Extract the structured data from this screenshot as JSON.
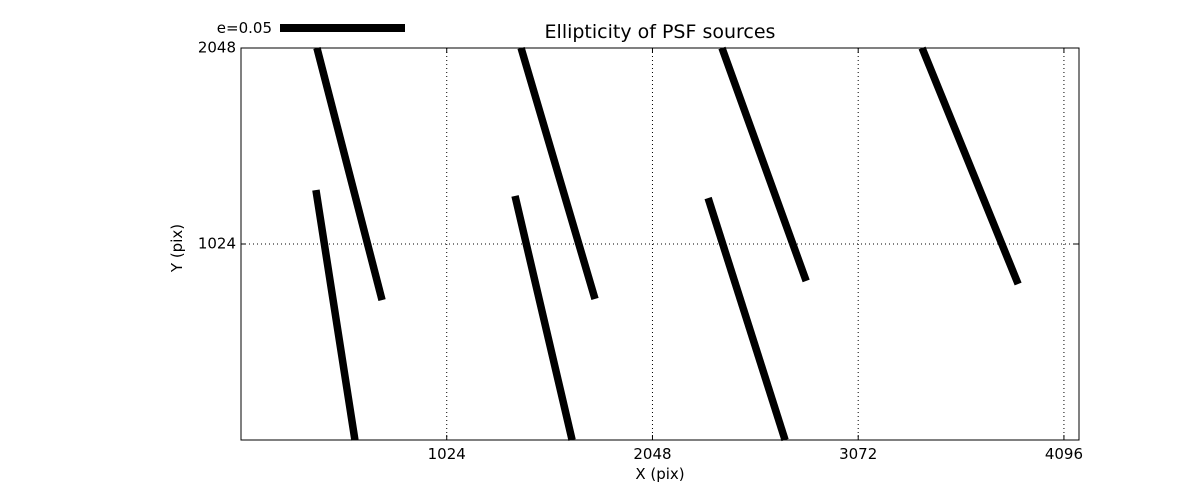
{
  "chart_data": {
    "type": "quiver",
    "title": "Ellipticity of PSF sources",
    "xlabel": "X (pix)",
    "ylabel": "Y (pix)",
    "xlim": [
      0,
      4171
    ],
    "ylim": [
      0,
      2048
    ],
    "xticks": [
      1024,
      2048,
      3072,
      4096
    ],
    "yticks": [
      1024,
      2048
    ],
    "grid": {
      "style": "dotted",
      "color": "#000000"
    },
    "legend": {
      "label": "e=0.05"
    },
    "stroke_color": "#000000",
    "background_color": "#ffffff",
    "segments": [
      {
        "x1": 378,
        "y1": 2048,
        "x2": 702,
        "y2": 731
      },
      {
        "x1": 373,
        "y1": 1306,
        "x2": 567,
        "y2": 0
      },
      {
        "x1": 1394,
        "y1": 2048,
        "x2": 1762,
        "y2": 737
      },
      {
        "x1": 1364,
        "y1": 1275,
        "x2": 1648,
        "y2": 0
      },
      {
        "x1": 2394,
        "y1": 2048,
        "x2": 2813,
        "y2": 831
      },
      {
        "x1": 2325,
        "y1": 1264,
        "x2": 2708,
        "y2": 0
      },
      {
        "x1": 3390,
        "y1": 2048,
        "x2": 3868,
        "y2": 815
      }
    ]
  }
}
